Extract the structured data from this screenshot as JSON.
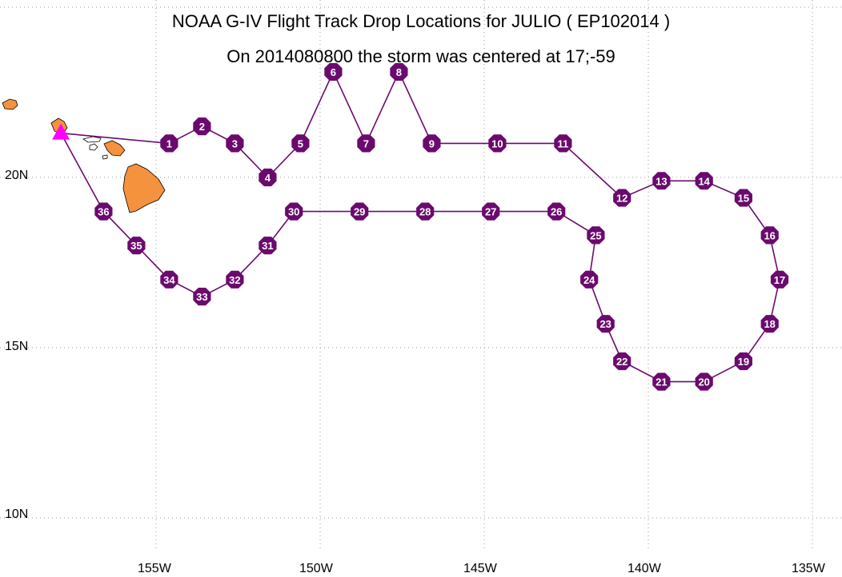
{
  "title": "NOAA G-IV Flight Track Drop Locations for JULIO ( EP102014 )",
  "subtitle": "On 2014080800 the storm was centered at 17;-59",
  "colors": {
    "track": "#6b0a6e",
    "marker_fill": "#6b0a6e",
    "marker_text": "#ffffff",
    "land": "#f5923e",
    "grid": "#999999",
    "start_marker": "#ff00ff"
  },
  "axes": {
    "x_ticks": [
      "155W",
      "150W",
      "145W",
      "140W",
      "135W"
    ],
    "y_ticks": [
      "20N",
      "15N",
      "10N"
    ]
  },
  "chart_data": {
    "type": "map-track",
    "start_point": {
      "lon": -157.9,
      "lat": 21.3,
      "label": ""
    },
    "drops": [
      {
        "id": "1",
        "lon": -154.6,
        "lat": 21.0
      },
      {
        "id": "2",
        "lon": -153.6,
        "lat": 21.5
      },
      {
        "id": "3",
        "lon": -152.6,
        "lat": 21.0
      },
      {
        "id": "4",
        "lon": -151.6,
        "lat": 20.0
      },
      {
        "id": "5",
        "lon": -150.6,
        "lat": 21.0
      },
      {
        "id": "6",
        "lon": -149.6,
        "lat": 23.1
      },
      {
        "id": "7",
        "lon": -148.6,
        "lat": 21.0
      },
      {
        "id": "8",
        "lon": -147.6,
        "lat": 23.1
      },
      {
        "id": "9",
        "lon": -146.6,
        "lat": 21.0
      },
      {
        "id": "10",
        "lon": -144.6,
        "lat": 21.0
      },
      {
        "id": "11",
        "lon": -142.6,
        "lat": 21.0
      },
      {
        "id": "12",
        "lon": -140.8,
        "lat": 19.4
      },
      {
        "id": "13",
        "lon": -139.6,
        "lat": 19.9
      },
      {
        "id": "14",
        "lon": -138.3,
        "lat": 19.9
      },
      {
        "id": "15",
        "lon": -137.1,
        "lat": 19.4
      },
      {
        "id": "16",
        "lon": -136.3,
        "lat": 18.3
      },
      {
        "id": "17",
        "lon": -136.0,
        "lat": 17.0
      },
      {
        "id": "18",
        "lon": -136.3,
        "lat": 15.7
      },
      {
        "id": "19",
        "lon": -137.1,
        "lat": 14.6
      },
      {
        "id": "20",
        "lon": -138.3,
        "lat": 14.0
      },
      {
        "id": "21",
        "lon": -139.6,
        "lat": 14.0
      },
      {
        "id": "22",
        "lon": -140.8,
        "lat": 14.6
      },
      {
        "id": "23",
        "lon": -141.3,
        "lat": 15.7
      },
      {
        "id": "24",
        "lon": -141.8,
        "lat": 17.0
      },
      {
        "id": "25",
        "lon": -141.6,
        "lat": 18.3
      },
      {
        "id": "26",
        "lon": -142.8,
        "lat": 19.0
      },
      {
        "id": "27",
        "lon": -144.8,
        "lat": 19.0
      },
      {
        "id": "28",
        "lon": -146.8,
        "lat": 19.0
      },
      {
        "id": "29",
        "lon": -148.8,
        "lat": 19.0
      },
      {
        "id": "30",
        "lon": -150.8,
        "lat": 19.0
      },
      {
        "id": "31",
        "lon": -151.6,
        "lat": 18.0
      },
      {
        "id": "32",
        "lon": -152.6,
        "lat": 17.0
      },
      {
        "id": "33",
        "lon": -153.6,
        "lat": 16.5
      },
      {
        "id": "34",
        "lon": -154.6,
        "lat": 17.0
      },
      {
        "id": "35",
        "lon": -155.6,
        "lat": 18.0
      },
      {
        "id": "36",
        "lon": -156.6,
        "lat": 19.0
      }
    ]
  }
}
